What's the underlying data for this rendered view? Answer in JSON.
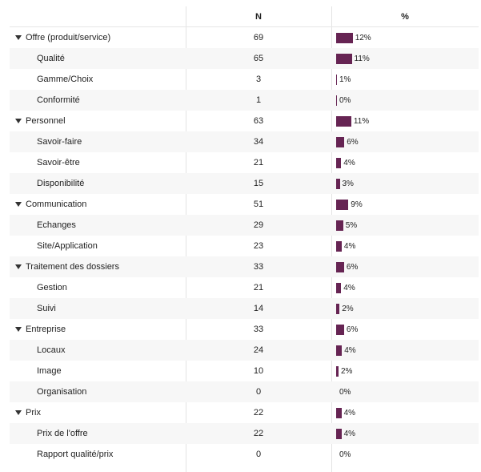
{
  "header": {
    "label": "",
    "n": "N",
    "pct": "%"
  },
  "colors": {
    "bar": "#662453"
  },
  "rows": [
    {
      "label": "Offre (produit/service)",
      "n": 69,
      "pct": "12%",
      "parent": true
    },
    {
      "label": "Qualité",
      "n": 65,
      "pct": "11%"
    },
    {
      "label": "Gamme/Choix",
      "n": 3,
      "pct": "1%"
    },
    {
      "label": "Conformité",
      "n": 1,
      "pct": "0%"
    },
    {
      "label": "Personnel",
      "n": 63,
      "pct": "11%",
      "parent": true
    },
    {
      "label": "Savoir-faire",
      "n": 34,
      "pct": "6%"
    },
    {
      "label": "Savoir-être",
      "n": 21,
      "pct": "4%"
    },
    {
      "label": "Disponibilité",
      "n": 15,
      "pct": "3%"
    },
    {
      "label": "Communication",
      "n": 51,
      "pct": "9%",
      "parent": true
    },
    {
      "label": "Echanges",
      "n": 29,
      "pct": "5%"
    },
    {
      "label": "Site/Application",
      "n": 23,
      "pct": "4%"
    },
    {
      "label": "Traitement des dossiers",
      "n": 33,
      "pct": "6%",
      "parent": true
    },
    {
      "label": "Gestion",
      "n": 21,
      "pct": "4%"
    },
    {
      "label": "Suivi",
      "n": 14,
      "pct": "2%"
    },
    {
      "label": "Entreprise",
      "n": 33,
      "pct": "6%",
      "parent": true
    },
    {
      "label": "Locaux",
      "n": 24,
      "pct": "4%"
    },
    {
      "label": "Image",
      "n": 10,
      "pct": "2%"
    },
    {
      "label": "Organisation",
      "n": 0,
      "pct": "0%"
    },
    {
      "label": "Prix",
      "n": 22,
      "pct": "4%",
      "parent": true
    },
    {
      "label": "Prix de l'offre",
      "n": 22,
      "pct": "4%"
    },
    {
      "label": "Rapport qualité/prix",
      "n": 0,
      "pct": "0%"
    }
  ]
}
